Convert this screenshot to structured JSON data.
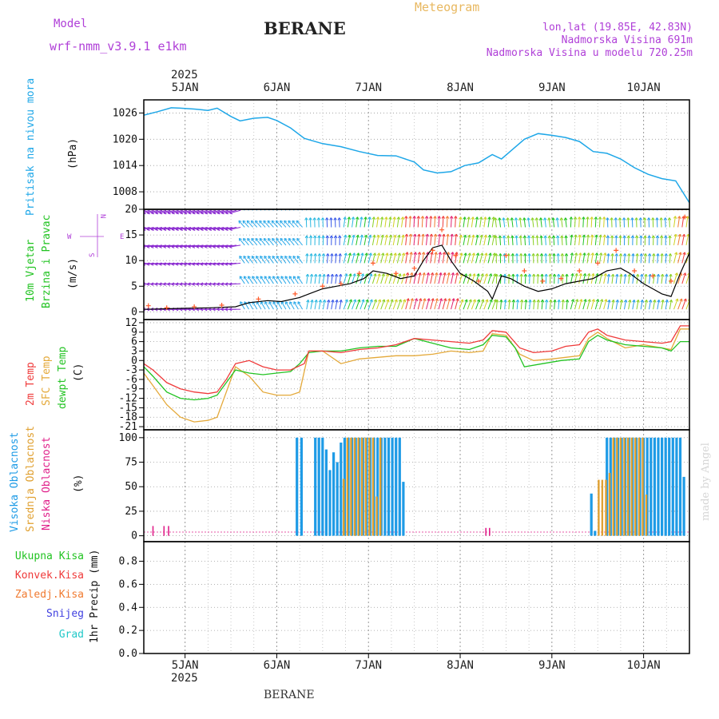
{
  "header": {
    "model_label": "Model",
    "model_name": "wrf-nmm_v3.9.1 e1km",
    "title": "BERANE",
    "subtitle": "Meteogram",
    "lonlat": "lon,lat (19.85E, 42.83N)",
    "elevation": "Nadmorska Visina 691m",
    "model_elevation": "Nadmorska Visina u modelu 720.25m",
    "footer_station": "BERANE",
    "watermark": "made by Angel"
  },
  "time_axis": {
    "year": "2025",
    "days": [
      "5JAN",
      "6JAN",
      "7JAN",
      "8JAN",
      "9JAN",
      "10JAN"
    ],
    "x_range_days": [
      4.55,
      10.5
    ]
  },
  "panels": {
    "pressure": {
      "label_main": "Pritisak na nivou mora",
      "unit": "(hPa)",
      "ylim": [
        1004,
        1029
      ],
      "ticks": [
        1008,
        1014,
        1020,
        1026
      ]
    },
    "wind": {
      "label_line1": "10m Vjetar",
      "label_line2": "Brzina i Pravac",
      "unit": "(m/s)",
      "ylim": [
        -1.5,
        20
      ],
      "ticks": [
        0,
        5,
        10,
        15,
        20
      ],
      "compass": {
        "n": "N",
        "e": "E",
        "s": "S",
        "w": "W"
      }
    },
    "temp": {
      "label_2m": "2m Temp",
      "label_sfc": "SFC Temp",
      "label_dew": "dewpt Temp",
      "unit": "(C)",
      "ylim": [
        -22,
        13
      ],
      "ticks": [
        12,
        9,
        6,
        3,
        0,
        -3,
        -6,
        -9,
        -12,
        -15,
        -18,
        -21
      ]
    },
    "cloud": {
      "label_high": "Visoka Oblacnost",
      "label_mid": "Srednja Oblacnost",
      "label_low": "Niska Oblacnost",
      "unit": "(%)",
      "ylim": [
        -6,
        108
      ],
      "ticks": [
        0,
        25,
        50,
        75,
        100
      ]
    },
    "precip": {
      "label_total": "Ukupna Kisa",
      "label_conv": "Konvek.Kisa",
      "label_frz": "Zaledj.Kisa",
      "label_snow": "Snijeg",
      "label_grad": "Grad",
      "unit": "1hr Precip (mm)",
      "ylim": [
        0,
        0.97
      ],
      "ticks": [
        0,
        0.2,
        0.4,
        0.6,
        0.8
      ]
    }
  },
  "colors": {
    "pressure": "#1ea7e8",
    "temp_2m": "#ef3a3a",
    "temp_sfc": "#e4a93a",
    "temp_dew": "#22c322",
    "cloud_high": "#1e9be6",
    "cloud_mid": "#e0a030",
    "cloud_low": "#e0208a",
    "wind_line": "#000000",
    "wind_gust": "#ff5a2a",
    "magenta_label": "#b040d8",
    "precip_total": "#22c322",
    "precip_conv": "#ef3a3a",
    "precip_frz": "#f07a30",
    "precip_snow": "#4040e0",
    "precip_grad": "#20c8c8"
  },
  "chart_data": [
    {
      "type": "line",
      "name": "sea-level-pressure",
      "x_unit": "day of January 2025",
      "y_unit": "hPa",
      "x": [
        4.55,
        4.7,
        4.85,
        4.95,
        5.1,
        5.25,
        5.35,
        5.5,
        5.6,
        5.75,
        5.9,
        6.0,
        6.15,
        6.3,
        6.5,
        6.7,
        6.9,
        7.1,
        7.3,
        7.5,
        7.6,
        7.75,
        7.9,
        8.05,
        8.2,
        8.35,
        8.45,
        8.55,
        8.7,
        8.85,
        9.0,
        9.15,
        9.3,
        9.45,
        9.6,
        9.75,
        9.9,
        10.05,
        10.2,
        10.35,
        10.5
      ],
      "y": [
        1025.5,
        1026.3,
        1027.2,
        1027.1,
        1026.9,
        1026.6,
        1027.1,
        1025.2,
        1024.2,
        1024.8,
        1025.0,
        1024.3,
        1022.6,
        1020.2,
        1019.0,
        1018.3,
        1017.2,
        1016.3,
        1016.2,
        1014.8,
        1013.0,
        1012.3,
        1012.6,
        1014.0,
        1014.6,
        1016.5,
        1015.5,
        1017.3,
        1020.0,
        1021.3,
        1020.9,
        1020.4,
        1019.5,
        1017.2,
        1016.8,
        1015.5,
        1013.5,
        1012.0,
        1011.0,
        1010.5,
        1005.5
      ]
    },
    {
      "type": "line",
      "name": "wind-speed-10m",
      "y_unit": "m/s",
      "x": [
        4.55,
        4.8,
        5.0,
        5.3,
        5.55,
        5.7,
        5.9,
        6.05,
        6.25,
        6.35,
        6.5,
        6.65,
        6.8,
        6.95,
        7.05,
        7.2,
        7.35,
        7.5,
        7.6,
        7.7,
        7.8,
        7.9,
        8.0,
        8.15,
        8.3,
        8.35,
        8.45,
        8.55,
        8.7,
        8.85,
        9.0,
        9.15,
        9.3,
        9.45,
        9.6,
        9.75,
        9.85,
        10.0,
        10.1,
        10.2,
        10.3,
        10.4,
        10.5
      ],
      "y": [
        0.5,
        0.6,
        0.7,
        0.8,
        1.0,
        1.8,
        2.2,
        2.0,
        2.8,
        3.5,
        4.5,
        5.0,
        5.5,
        6.5,
        8.0,
        7.5,
        6.5,
        7.0,
        10.0,
        12.5,
        13.0,
        10.0,
        7.5,
        6.0,
        4.0,
        2.5,
        7.0,
        6.5,
        5.0,
        4.0,
        4.5,
        5.5,
        6.0,
        6.5,
        8.0,
        8.5,
        7.5,
        5.5,
        4.5,
        3.5,
        3.0,
        7.5,
        11.5
      ]
    },
    {
      "type": "scatter",
      "name": "wind-gust-10m",
      "y_unit": "m/s",
      "x": [
        4.6,
        4.8,
        5.1,
        5.4,
        5.8,
        6.2,
        6.5,
        6.7,
        6.9,
        7.05,
        7.3,
        7.5,
        7.7,
        7.8,
        7.95,
        8.2,
        8.5,
        8.7,
        8.9,
        9.1,
        9.3,
        9.5,
        9.7,
        9.9,
        10.1,
        10.3,
        10.45
      ],
      "y": [
        1.2,
        0.8,
        1.0,
        1.3,
        2.5,
        3.5,
        5.0,
        5.5,
        7.5,
        9.5,
        7.5,
        8.5,
        12.0,
        16.0,
        11.0,
        6.0,
        11.0,
        8.0,
        6.0,
        6.5,
        8.0,
        9.5,
        12.0,
        8.0,
        7.0,
        6.0,
        18.5
      ]
    },
    {
      "type": "line",
      "name": "temperature",
      "y_unit": "C",
      "series": [
        {
          "name": "2m Temp",
          "x": [
            4.55,
            4.65,
            4.8,
            4.95,
            5.1,
            5.25,
            5.35,
            5.45,
            5.55,
            5.7,
            5.85,
            6.0,
            6.15,
            6.3,
            6.35,
            6.5,
            6.7,
            6.9,
            7.1,
            7.3,
            7.5,
            7.7,
            7.9,
            8.1,
            8.25,
            8.35,
            8.5,
            8.65,
            8.8,
            9.0,
            9.15,
            9.3,
            9.4,
            9.5,
            9.6,
            9.8,
            10.0,
            10.2,
            10.3,
            10.4,
            10.5
          ],
          "y": [
            -1,
            -3,
            -7,
            -9,
            -10,
            -10.5,
            -10,
            -6,
            -1,
            0,
            -2,
            -3,
            -3,
            -1,
            3,
            3,
            2.5,
            3.5,
            4,
            5,
            7,
            6.5,
            6,
            5.5,
            6.5,
            9.5,
            9,
            4,
            2.5,
            3,
            4.5,
            5,
            9,
            10,
            8,
            6.5,
            6,
            5.5,
            6,
            11,
            11
          ]
        },
        {
          "name": "SFC Temp",
          "x": [
            4.55,
            4.65,
            4.8,
            4.95,
            5.1,
            5.25,
            5.35,
            5.45,
            5.55,
            5.7,
            5.85,
            6.0,
            6.15,
            6.25,
            6.35,
            6.5,
            6.7,
            6.9,
            7.1,
            7.3,
            7.5,
            7.7,
            7.9,
            8.1,
            8.25,
            8.35,
            8.5,
            8.65,
            8.8,
            9.0,
            9.15,
            9.3,
            9.4,
            9.5,
            9.6,
            9.8,
            10.0,
            10.2,
            10.3,
            10.4,
            10.5
          ],
          "y": [
            -4,
            -8,
            -14,
            -18,
            -19.5,
            -19,
            -18,
            -10,
            -2,
            -5,
            -10,
            -11,
            -11,
            -10,
            3,
            3,
            -1,
            0.5,
            1,
            1.5,
            1.5,
            2,
            3,
            2.5,
            3,
            8.5,
            8,
            2,
            0,
            0.5,
            1,
            1.5,
            7,
            9,
            7,
            4,
            5,
            4,
            3.5,
            10,
            10
          ]
        },
        {
          "name": "dewpt Temp",
          "x": [
            4.55,
            4.65,
            4.8,
            4.95,
            5.1,
            5.25,
            5.35,
            5.45,
            5.55,
            5.7,
            5.85,
            6.0,
            6.15,
            6.25,
            6.35,
            6.5,
            6.7,
            6.9,
            7.1,
            7.3,
            7.5,
            7.7,
            7.9,
            8.1,
            8.25,
            8.35,
            8.5,
            8.6,
            8.7,
            8.9,
            9.1,
            9.3,
            9.4,
            9.5,
            9.6,
            9.8,
            10.0,
            10.2,
            10.3,
            10.4,
            10.5
          ],
          "y": [
            -2,
            -5,
            -10,
            -12,
            -12.5,
            -12,
            -11,
            -7,
            -3,
            -4,
            -4.5,
            -4,
            -3.5,
            -1,
            2.5,
            3,
            3,
            4,
            4.5,
            4.5,
            7,
            5.5,
            4,
            3.5,
            5,
            8,
            7.5,
            4,
            -2,
            -1,
            0,
            0.5,
            6,
            8,
            6.5,
            5,
            4.5,
            4,
            3,
            6,
            6
          ]
        }
      ]
    },
    {
      "type": "bar",
      "name": "cloud-cover",
      "y_unit": "%",
      "series": [
        {
          "name": "Visoka Oblacnost",
          "bars": [
            [
              6.22,
              100
            ],
            [
              6.27,
              100
            ],
            [
              6.42,
              100
            ],
            [
              6.46,
              100
            ],
            [
              6.5,
              100
            ],
            [
              6.54,
              88
            ],
            [
              6.58,
              67
            ],
            [
              6.62,
              85
            ],
            [
              6.66,
              75
            ],
            [
              6.7,
              95
            ],
            [
              6.74,
              100
            ],
            [
              6.78,
              100
            ],
            [
              6.82,
              100
            ],
            [
              6.86,
              100
            ],
            [
              6.9,
              100
            ],
            [
              6.94,
              100
            ],
            [
              6.98,
              100
            ],
            [
              7.02,
              100
            ],
            [
              7.06,
              100
            ],
            [
              7.1,
              100
            ],
            [
              7.14,
              100
            ],
            [
              7.18,
              100
            ],
            [
              7.22,
              100
            ],
            [
              7.26,
              100
            ],
            [
              7.3,
              100
            ],
            [
              7.34,
              100
            ],
            [
              7.38,
              55
            ],
            [
              9.43,
              43
            ],
            [
              9.47,
              5
            ],
            [
              9.6,
              100
            ],
            [
              9.64,
              100
            ],
            [
              9.68,
              100
            ],
            [
              9.72,
              100
            ],
            [
              9.76,
              100
            ],
            [
              9.8,
              100
            ],
            [
              9.84,
              100
            ],
            [
              9.88,
              100
            ],
            [
              9.92,
              100
            ],
            [
              9.96,
              100
            ],
            [
              10.0,
              100
            ],
            [
              10.04,
              100
            ],
            [
              10.08,
              100
            ],
            [
              10.12,
              100
            ],
            [
              10.16,
              100
            ],
            [
              10.2,
              100
            ],
            [
              10.24,
              100
            ],
            [
              10.28,
              100
            ],
            [
              10.32,
              100
            ],
            [
              10.36,
              100
            ],
            [
              10.4,
              100
            ],
            [
              10.44,
              60
            ]
          ]
        },
        {
          "name": "Srednja Oblacnost",
          "bars": [
            [
              6.73,
              58
            ],
            [
              6.77,
              100
            ],
            [
              6.81,
              100
            ],
            [
              6.85,
              100
            ],
            [
              6.89,
              100
            ],
            [
              6.93,
              100
            ],
            [
              6.97,
              100
            ],
            [
              7.01,
              100
            ],
            [
              7.05,
              100
            ],
            [
              7.09,
              40
            ],
            [
              7.13,
              100
            ],
            [
              9.51,
              57
            ],
            [
              9.55,
              57
            ],
            [
              9.59,
              57
            ],
            [
              9.63,
              64
            ],
            [
              9.67,
              100
            ],
            [
              9.71,
              100
            ],
            [
              9.75,
              100
            ],
            [
              9.79,
              100
            ],
            [
              9.83,
              100
            ],
            [
              9.87,
              100
            ],
            [
              9.91,
              100
            ],
            [
              9.95,
              100
            ],
            [
              9.99,
              100
            ],
            [
              10.03,
              42
            ]
          ]
        },
        {
          "name": "Niska Oblacnost",
          "bars": [
            [
              4.65,
              10
            ],
            [
              4.77,
              10
            ],
            [
              4.82,
              10
            ],
            [
              8.28,
              8
            ],
            [
              8.32,
              8
            ]
          ]
        }
      ]
    },
    {
      "type": "bar",
      "name": "precipitation-1hr",
      "y_unit": "mm",
      "series": [
        {
          "name": "Ukupna Kisa",
          "values": []
        },
        {
          "name": "Konvek.Kisa",
          "values": []
        },
        {
          "name": "Zaledj.Kisa",
          "values": []
        },
        {
          "name": "Snijeg",
          "values": []
        },
        {
          "name": "Grad",
          "values": []
        }
      ]
    }
  ]
}
